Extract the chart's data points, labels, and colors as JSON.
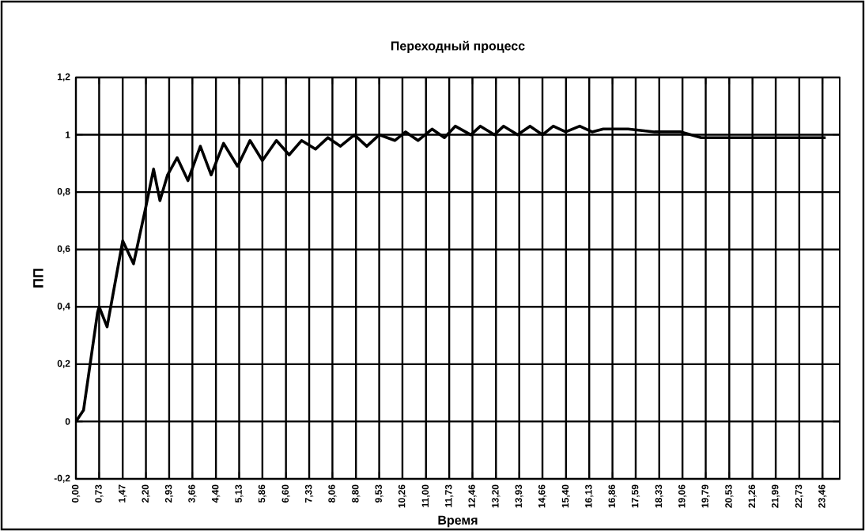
{
  "chart_data": {
    "type": "line",
    "title": "Переходный процесс",
    "xlabel": "Время",
    "ylabel": "ПП",
    "xlim": [
      0,
      24
    ],
    "ylim": [
      -0.2,
      1.2
    ],
    "xticks": [
      {
        "value": 0,
        "label": "0,00"
      },
      {
        "value": 0.73,
        "label": "0,73"
      },
      {
        "value": 1.47,
        "label": "1,47"
      },
      {
        "value": 2.2,
        "label": "2,20"
      },
      {
        "value": 2.93,
        "label": "2,93"
      },
      {
        "value": 3.66,
        "label": "3,66"
      },
      {
        "value": 4.4,
        "label": "4,40"
      },
      {
        "value": 5.13,
        "label": "5,13"
      },
      {
        "value": 5.86,
        "label": "5,86"
      },
      {
        "value": 6.6,
        "label": "6,60"
      },
      {
        "value": 7.33,
        "label": "7,33"
      },
      {
        "value": 8.06,
        "label": "8,06"
      },
      {
        "value": 8.8,
        "label": "8,80"
      },
      {
        "value": 9.53,
        "label": "9,53"
      },
      {
        "value": 10.26,
        "label": "10,26"
      },
      {
        "value": 11.0,
        "label": "11,00"
      },
      {
        "value": 11.73,
        "label": "11,73"
      },
      {
        "value": 12.46,
        "label": "12,46"
      },
      {
        "value": 13.2,
        "label": "13,20"
      },
      {
        "value": 13.93,
        "label": "13,93"
      },
      {
        "value": 14.66,
        "label": "14,66"
      },
      {
        "value": 15.4,
        "label": "15,40"
      },
      {
        "value": 16.13,
        "label": "16,13"
      },
      {
        "value": 16.86,
        "label": "16,86"
      },
      {
        "value": 17.59,
        "label": "17,59"
      },
      {
        "value": 18.33,
        "label": "18,33"
      },
      {
        "value": 19.06,
        "label": "19,06"
      },
      {
        "value": 19.79,
        "label": "19,79"
      },
      {
        "value": 20.53,
        "label": "20,53"
      },
      {
        "value": 21.26,
        "label": "21,26"
      },
      {
        "value": 21.99,
        "label": "21,99"
      },
      {
        "value": 22.73,
        "label": "22,73"
      },
      {
        "value": 23.46,
        "label": "23,46"
      }
    ],
    "yticks": [
      {
        "value": -0.2,
        "label": "-0,2"
      },
      {
        "value": 0,
        "label": "0"
      },
      {
        "value": 0.2,
        "label": "0,2"
      },
      {
        "value": 0.4,
        "label": "0,4"
      },
      {
        "value": 0.6,
        "label": "0,6"
      },
      {
        "value": 0.8,
        "label": "0,8"
      },
      {
        "value": 1,
        "label": "1"
      },
      {
        "value": 1.2,
        "label": "1,2"
      }
    ],
    "grid": true,
    "marker": "none",
    "line_style": "solid",
    "series": [
      {
        "color": "#000000",
        "x": [
          0,
          0.24,
          0.68,
          0.73,
          0.98,
          1.47,
          1.81,
          2.2,
          2.44,
          2.64,
          2.88,
          3.18,
          3.52,
          3.91,
          4.25,
          4.64,
          5.08,
          5.47,
          5.86,
          6.3,
          6.7,
          7.09,
          7.53,
          7.92,
          8.31,
          8.75,
          9.14,
          9.53,
          10.02,
          10.36,
          10.75,
          11.19,
          11.58,
          11.92,
          12.41,
          12.71,
          13.15,
          13.44,
          13.88,
          14.27,
          14.66,
          15.0,
          15.39,
          15.83,
          16.22,
          16.57,
          17.35,
          18.18,
          19.01,
          19.65,
          20.28,
          21.01,
          22.24,
          23.56
        ],
        "values": [
          0,
          0.04,
          0.38,
          0.4,
          0.33,
          0.63,
          0.55,
          0.75,
          0.88,
          0.77,
          0.86,
          0.92,
          0.84,
          0.96,
          0.86,
          0.97,
          0.89,
          0.98,
          0.91,
          0.98,
          0.93,
          0.98,
          0.95,
          0.99,
          0.96,
          1.0,
          0.96,
          1.0,
          0.98,
          1.01,
          0.98,
          1.02,
          0.99,
          1.03,
          1.0,
          1.03,
          1.0,
          1.03,
          1.0,
          1.03,
          1.0,
          1.03,
          1.01,
          1.03,
          1.01,
          1.02,
          1.02,
          1.01,
          1.01,
          0.99,
          0.99,
          0.99,
          0.99,
          0.99
        ]
      }
    ]
  }
}
